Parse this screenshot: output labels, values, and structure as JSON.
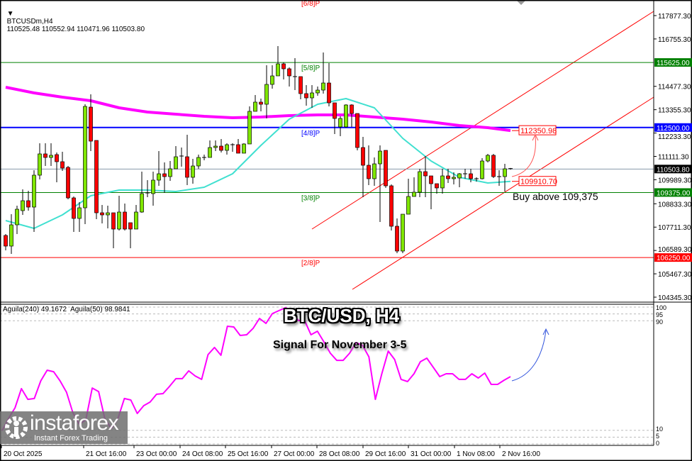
{
  "header": {
    "symbol": "BTCUSDm,H4",
    "ohlc": "110525.48 110552.94 110471.96 110503.80"
  },
  "overlay": {
    "title": "BTC/USD, H4",
    "subtitle": "Signal For November  3-5",
    "buy_note": "Buy above 109,375"
  },
  "logo": {
    "name": "instaforex",
    "tagline": "Instant Forex Trading"
  },
  "oscillator_legend": "Aguila(240) 49.1672  Aguila(50) 98.9841",
  "colors": {
    "bull": "#7fe600",
    "bear": "#ff0000",
    "ma_slow": "#ff00ff",
    "ma_fast": "#40e0d0",
    "blue_level": "#0000ff",
    "green_level": "#008000",
    "red_level": "#ff0000",
    "channel": "#ff0000",
    "oscillator": "#ff00ff",
    "forecast_arrow_osc": "#3355dd"
  },
  "chart_data": {
    "type": "candlestick",
    "price_range": [
      104345.3,
      117877.3
    ],
    "price_ticks": [
      "117877.30",
      "116755.30",
      "114477.30",
      "113355.30",
      "112233.30",
      "111111.30",
      "109989.30",
      "108833.30",
      "107711.30",
      "106589.30",
      "105467.30",
      "104345.30"
    ],
    "x_labels": [
      "20 Oct 2025",
      "21 Oct 16:00",
      "23 Oct 00:00",
      "24 Oct 08:00",
      "25 Oct 16:00",
      "27 Oct 00:00",
      "28 Oct 08:00",
      "29 Oct 16:00",
      "31 Oct 00:00",
      "1 Nov 08:00",
      "2 Nov 16:00"
    ],
    "candles_ohlc": [
      [
        107311,
        107379,
        106595,
        106800
      ],
      [
        106800,
        108333,
        106425,
        107822
      ],
      [
        107822,
        108742,
        107379,
        108572
      ],
      [
        108504,
        109526,
        108299,
        108981
      ],
      [
        108981,
        109458,
        108504,
        108674
      ],
      [
        108674,
        110447,
        107481,
        110208
      ],
      [
        110208,
        111742,
        110003,
        111231
      ],
      [
        111231,
        111742,
        110651,
        111060
      ],
      [
        111060,
        111742,
        110651,
        111163
      ],
      [
        111197,
        111299,
        109867,
        110856
      ],
      [
        110856,
        111333,
        110413,
        110549
      ],
      [
        110583,
        110651,
        109049,
        109117
      ],
      [
        109117,
        109185,
        107481,
        108129
      ],
      [
        108129,
        108913,
        107481,
        108640
      ],
      [
        108640,
        113615,
        107856,
        113514
      ],
      [
        113480,
        114094,
        111367,
        111844
      ],
      [
        111878,
        111878,
        108095,
        108401
      ],
      [
        108401,
        108776,
        107890,
        108299
      ],
      [
        108299,
        108742,
        107652,
        108401
      ],
      [
        108401,
        108401,
        106697,
        107618
      ],
      [
        107618,
        109220,
        107550,
        108436
      ],
      [
        108436,
        108845,
        107550,
        107618
      ],
      [
        107924,
        107924,
        106697,
        107618
      ],
      [
        107618,
        108776,
        107618,
        108436
      ],
      [
        108436,
        110378,
        108401,
        109322
      ],
      [
        109322,
        109970,
        109151,
        109356
      ],
      [
        109322,
        110378,
        108742,
        109970
      ],
      [
        109970,
        111367,
        109697,
        110276
      ],
      [
        110276,
        110822,
        109356,
        110140
      ],
      [
        110140,
        110890,
        109935,
        110515
      ],
      [
        110515,
        111605,
        110515,
        111094
      ],
      [
        111128,
        111537,
        110617,
        111094
      ],
      [
        111094,
        112151,
        109731,
        110106
      ],
      [
        110106,
        110992,
        109799,
        110651
      ],
      [
        110651,
        111197,
        110515,
        111060
      ],
      [
        111060,
        111197,
        110924,
        111060
      ],
      [
        111060,
        111878,
        111060,
        111537
      ],
      [
        111537,
        111878,
        111367,
        111605
      ],
      [
        111605,
        111946,
        111299,
        111401
      ],
      [
        111401,
        111742,
        111197,
        111674
      ],
      [
        111674,
        111742,
        111333,
        111674
      ],
      [
        111674,
        111946,
        111265,
        111265
      ],
      [
        111265,
        111742,
        111265,
        111708
      ],
      [
        111708,
        113514,
        111708,
        113276
      ],
      [
        113276,
        114060,
        113276,
        113719
      ],
      [
        113719,
        113889,
        113276,
        113617
      ],
      [
        113617,
        115491,
        112935,
        114571
      ],
      [
        114571,
        115491,
        114366,
        114980
      ],
      [
        114980,
        116411,
        114980,
        115559
      ],
      [
        115559,
        115627,
        114809,
        115321
      ],
      [
        115321,
        115389,
        114468,
        114980
      ],
      [
        114946,
        115832,
        114298,
        114946
      ],
      [
        114946,
        114946,
        113855,
        114128
      ],
      [
        114128,
        114537,
        113548,
        113923
      ],
      [
        113923,
        114537,
        113446,
        114162
      ],
      [
        114162,
        114468,
        114026,
        114298
      ],
      [
        114298,
        116105,
        114128,
        114639
      ],
      [
        114639,
        115593,
        113514,
        113685
      ],
      [
        113685,
        113685,
        112185,
        112935
      ],
      [
        112526,
        113037,
        112083,
        112935
      ],
      [
        112526,
        113617,
        112492,
        113583
      ],
      [
        113583,
        113617,
        112526,
        113173
      ],
      [
        113173,
        113173,
        111401,
        111537
      ],
      [
        111537,
        112048,
        109151,
        110685
      ],
      [
        110685,
        111640,
        109731,
        110038
      ],
      [
        110038,
        111060,
        109697,
        110753
      ],
      [
        110753,
        111640,
        107958,
        111367
      ],
      [
        111401,
        111401,
        109600,
        109697
      ],
      [
        109697,
        109765,
        107550,
        107754
      ],
      [
        107754,
        108129,
        106459,
        106561
      ],
      [
        106561,
        108333,
        106459,
        108333
      ],
      [
        108333,
        110038,
        108333,
        109185
      ],
      [
        109185,
        110106,
        109185,
        109390
      ],
      [
        109390,
        110515,
        109151,
        110378
      ],
      [
        110378,
        111128,
        109151,
        110174
      ],
      [
        110174,
        110174,
        108572,
        109799
      ],
      [
        109799,
        109799,
        109322,
        109595
      ],
      [
        109595,
        110515,
        109322,
        110174
      ],
      [
        110174,
        110515,
        109833,
        110038
      ],
      [
        110038,
        110344,
        109765,
        110106
      ],
      [
        110072,
        110310,
        109629,
        110276
      ],
      [
        110276,
        110515,
        110038,
        110276
      ],
      [
        110276,
        110515,
        109867,
        110038
      ],
      [
        110038,
        110106,
        109901,
        110038
      ],
      [
        110038,
        111026,
        110003,
        110890
      ],
      [
        110890,
        111231,
        110822,
        111163
      ],
      [
        111163,
        111231,
        110072,
        110140
      ],
      [
        110140,
        110447,
        109697,
        110140
      ],
      [
        110140,
        110753,
        109424,
        110515
      ],
      [
        110525.48,
        110552.94,
        110471.96,
        110503.8
      ]
    ],
    "ma_sample_bars": [
      0,
      5,
      10,
      15,
      20,
      25,
      30,
      35,
      40,
      45,
      50,
      55,
      60,
      65,
      70,
      75,
      80,
      85,
      89
    ],
    "ma_slow": [
      114435,
      114162,
      113958,
      113787,
      113446,
      113242,
      113139,
      113037,
      112969,
      113003,
      113071,
      113105,
      113105,
      113003,
      112901,
      112764,
      112594,
      112492,
      112351
    ],
    "ma_fast": [
      108026,
      107651,
      108299,
      109220,
      109492,
      109492,
      109424,
      109629,
      110276,
      111640,
      112901,
      113617,
      113889,
      113446,
      111981,
      110890,
      110106,
      109833,
      109910
    ],
    "levels": [
      {
        "price": 115625.0,
        "label": "115625.00",
        "tag": "[5/8]P",
        "color": "#008000"
      },
      {
        "price": 112500.0,
        "label": "112500.00",
        "tag": "[4/8]P",
        "color": "#0000ff"
      },
      {
        "price": 109375.0,
        "label": "109375.00",
        "tag": "[3/8]P",
        "color": "#008000"
      },
      {
        "price": 106250.0,
        "label": "106250.00",
        "tag": "[2/8]P",
        "color": "#ff0000"
      }
    ],
    "top_level_tag": "[6/8]P",
    "current_price": {
      "price": 110503.8,
      "label": "110503.80"
    },
    "annotations": [
      {
        "price": 112350.98,
        "label": "112350.98"
      },
      {
        "price": 109910.7,
        "label": "109910.70"
      }
    ],
    "oscillator": {
      "range": [
        0,
        100
      ],
      "levels": [
        100,
        95,
        90,
        10,
        5,
        0
      ],
      "level_labels": [
        "100",
        "95",
        "90",
        "10",
        "5",
        "0"
      ],
      "values": [
        9.8,
        18.7,
        26.4,
        40.4,
        32.6,
        33.2,
        46.1,
        53.9,
        52.8,
        46.1,
        37.8,
        22.8,
        14.5,
        17.6,
        40.9,
        38.3,
        17.6,
        11.4,
        18.7,
        33.2,
        32.1,
        22.3,
        28.0,
        30.6,
        36.3,
        36.8,
        42.0,
        47.7,
        47.7,
        53.4,
        49.7,
        47.2,
        65.3,
        70.5,
        64.8,
        86.0,
        85.5,
        79.3,
        79.8,
        84.5,
        91.7,
        88.1,
        95.3,
        97.4,
        99.5,
        97.9,
        90.2,
        90.2,
        79.8,
        82.4,
        74.6,
        66.3,
        61.1,
        61.1,
        66.3,
        74.1,
        72.0,
        63.7,
        32.6,
        51.3,
        67.9,
        61.7,
        47.2,
        45.6,
        51.3,
        60.1,
        62.7,
        56.0,
        49.2,
        51.3,
        51.3,
        47.2,
        47.2,
        51.3,
        48.2,
        51.8,
        43.5,
        43.5,
        46.6,
        49.2
      ]
    }
  }
}
